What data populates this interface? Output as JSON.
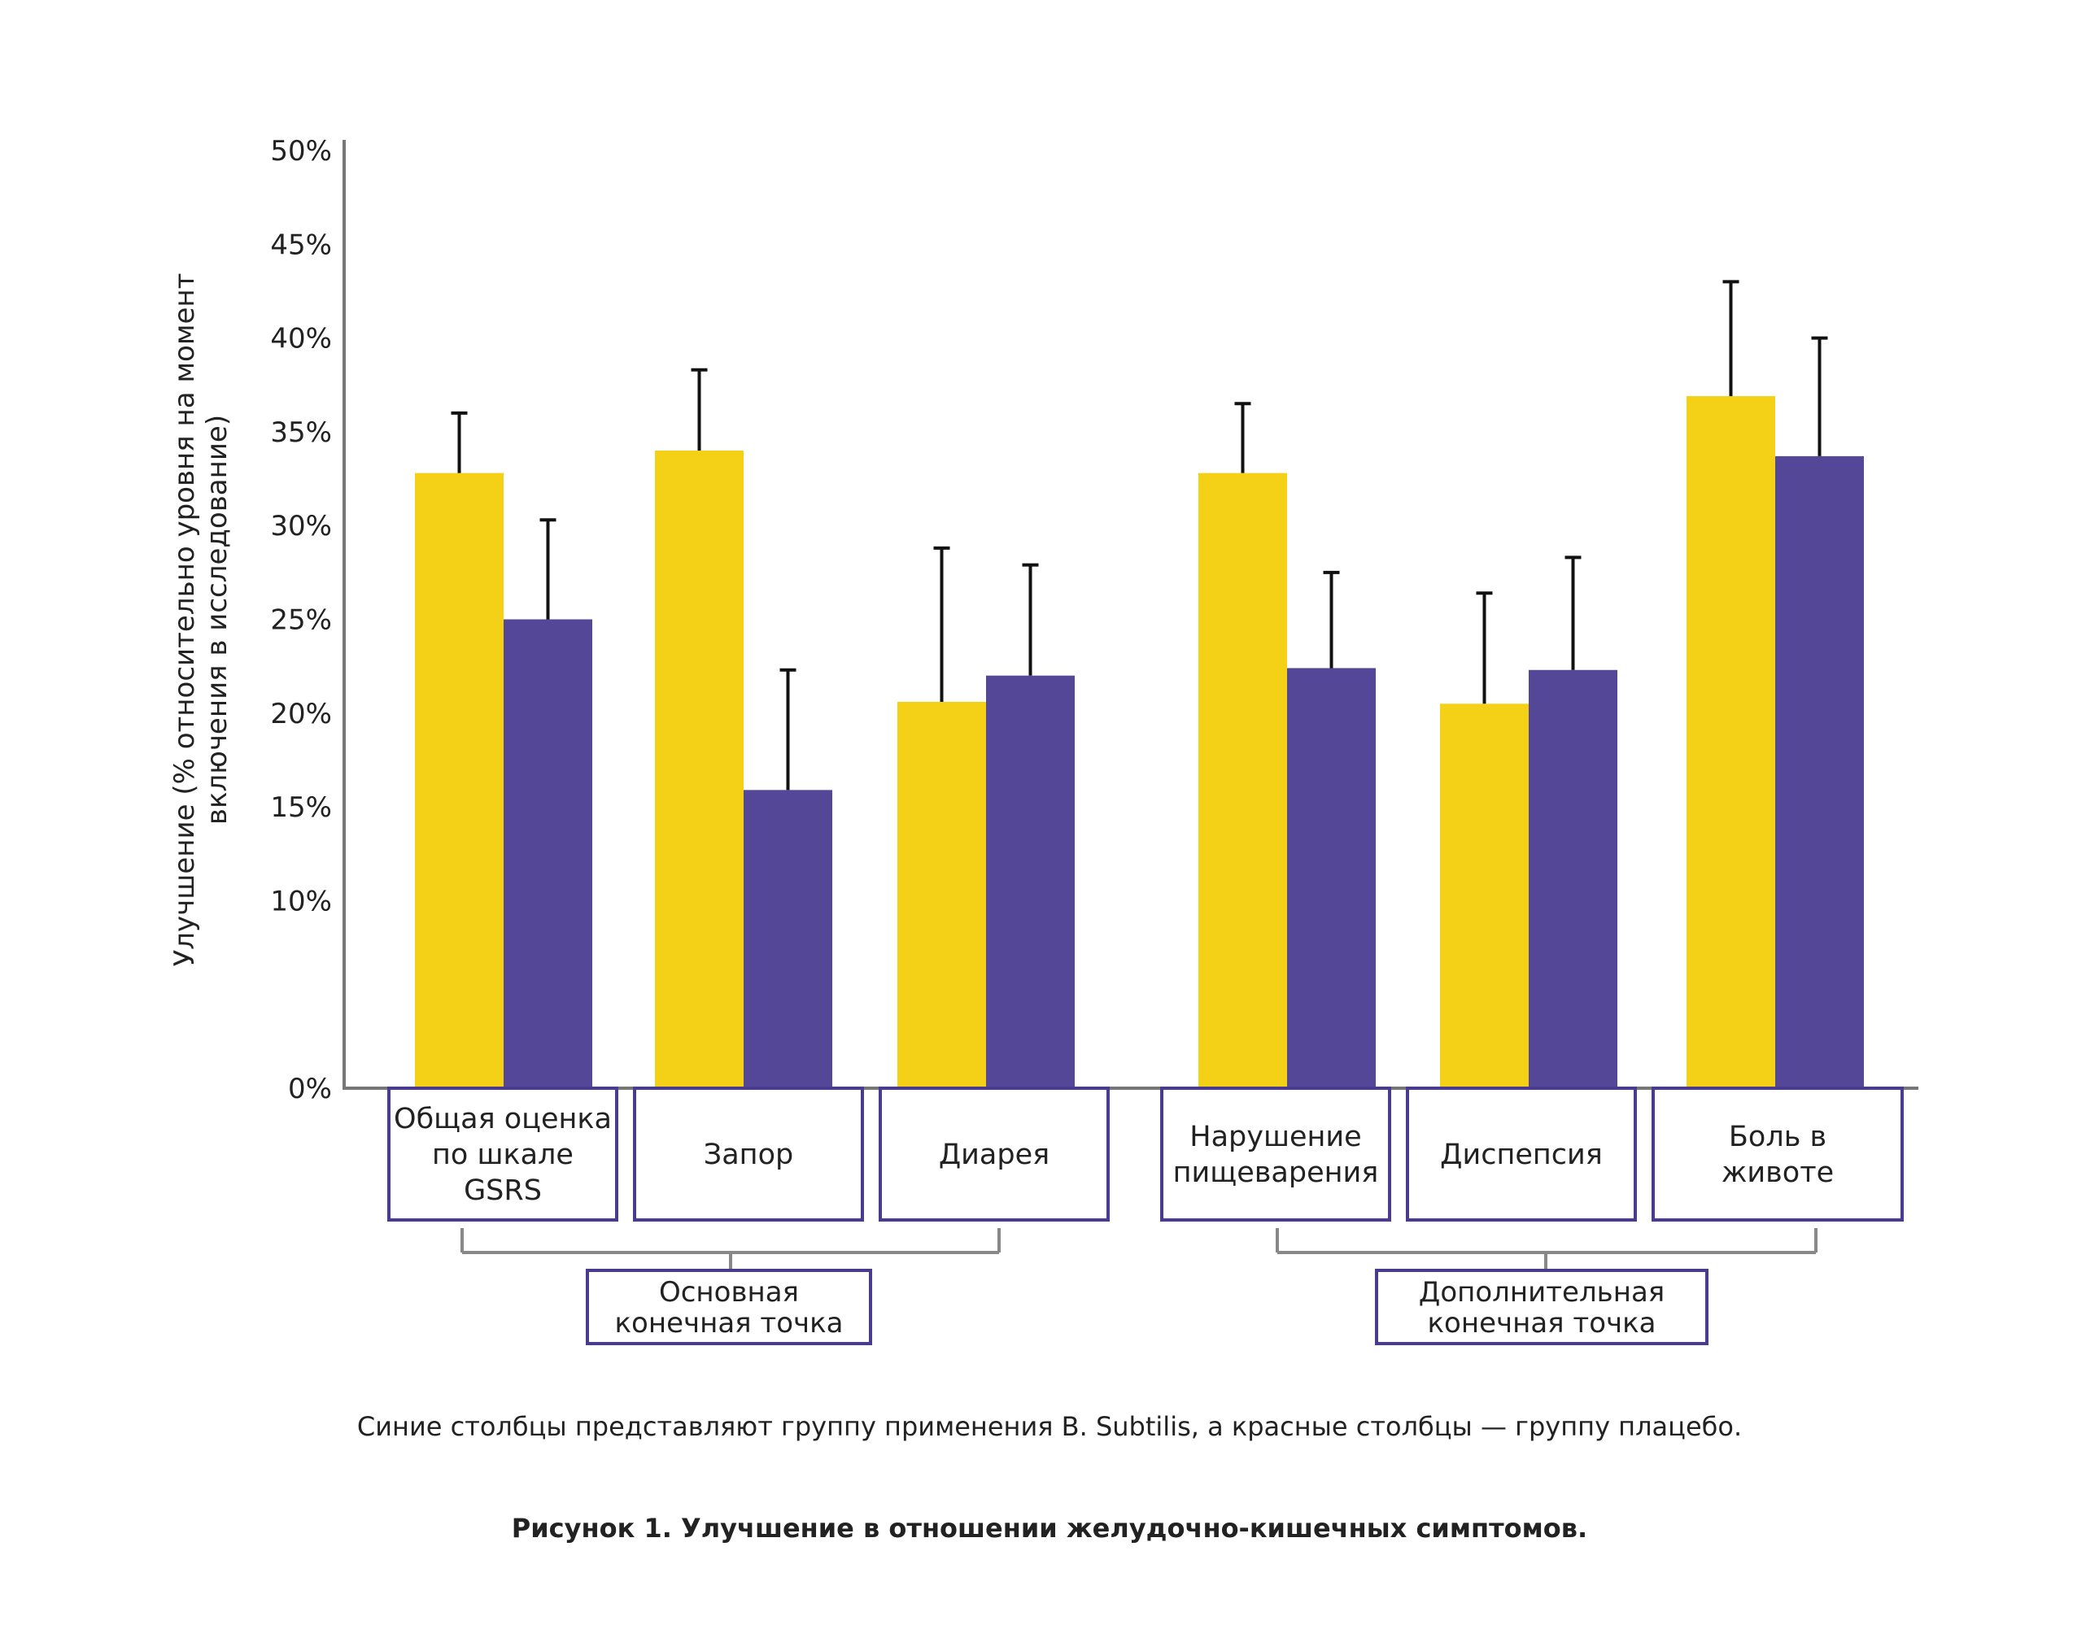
{
  "chart_data": {
    "type": "bar",
    "ylabel_lines": [
      "Улучшение (% относительно уровня на  момент",
      "включения в исследование)"
    ],
    "ylim": [
      0,
      50
    ],
    "ytick_labels": [
      "0%",
      "10%",
      "15%",
      "20%",
      "25%",
      "30%",
      "35%",
      "40%",
      "45%",
      "50%"
    ],
    "ytick_values": [
      0,
      10,
      15,
      20,
      25,
      30,
      35,
      40,
      45,
      50
    ],
    "colors": {
      "yellow": "#f4d116",
      "purple": "#554798",
      "frame": "#4b3b8e",
      "axis": "#777777",
      "error": "#111111"
    },
    "categories": [
      {
        "lines": [
          "Общая оценка",
          "по шкале",
          "GSRS"
        ],
        "yellow": 32.8,
        "yellow_err": 36.0,
        "purple": 25.0,
        "purple_err": 30.3
      },
      {
        "lines": [
          "Запор"
        ],
        "yellow": 34.0,
        "yellow_err": 38.3,
        "purple": 15.9,
        "purple_err": 22.3
      },
      {
        "lines": [
          "Диарея"
        ],
        "yellow": 20.6,
        "yellow_err": 28.8,
        "purple": 22.0,
        "purple_err": 27.9
      },
      {
        "lines": [
          "Нарушение",
          "пищеварения"
        ],
        "yellow": 32.8,
        "yellow_err": 36.5,
        "purple": 22.4,
        "purple_err": 27.5
      },
      {
        "lines": [
          "Диспепсия"
        ],
        "yellow": 20.5,
        "yellow_err": 26.4,
        "purple": 22.3,
        "purple_err": 28.3
      },
      {
        "lines": [
          "Боль в",
          "животе"
        ],
        "yellow": 36.9,
        "yellow_err": 43.0,
        "purple": 33.7,
        "purple_err": 40.0
      }
    ],
    "groups": [
      {
        "lines": [
          "Основная",
          "конечная точка"
        ]
      },
      {
        "lines": [
          "Дополнительная",
          "конечная точка"
        ]
      }
    ]
  },
  "note": "Синие столбцы представляют группу применения B. Subtilis, а красные столбцы — группу плацебо.",
  "caption": "Рисунок 1. Улучшение в отношении желудочно-кишечных симптомов."
}
